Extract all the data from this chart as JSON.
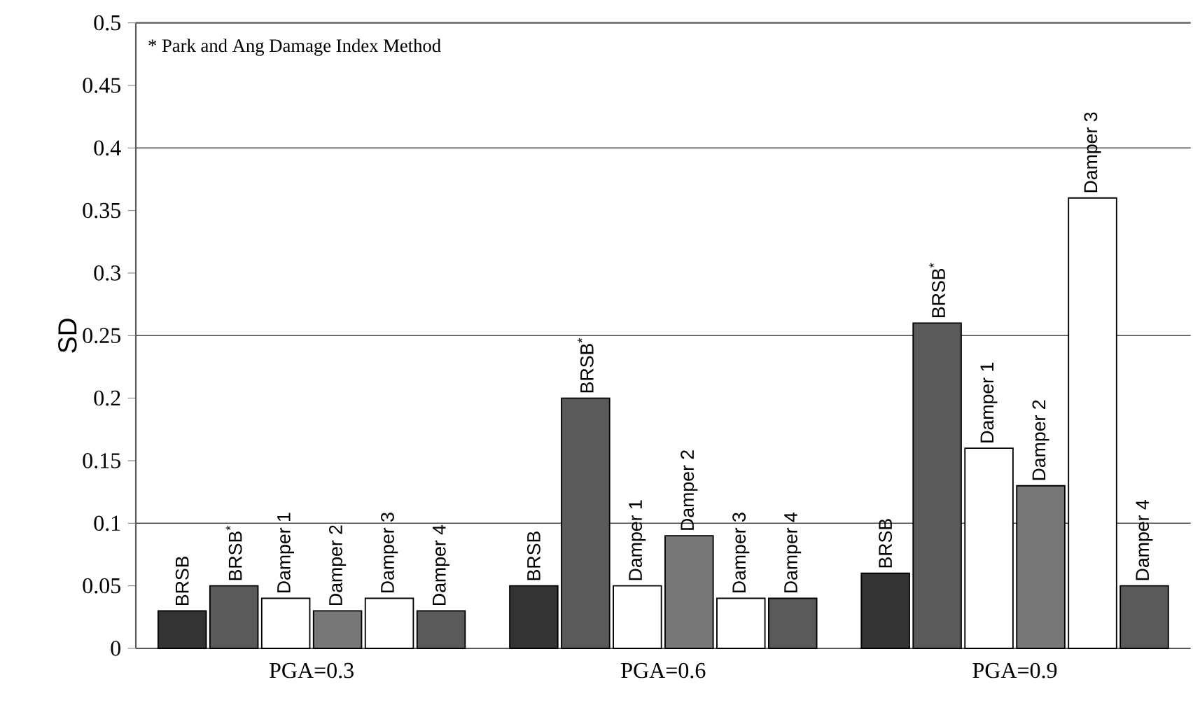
{
  "chart_data": {
    "type": "bar",
    "ylabel": "SD",
    "categories": [
      "PGA=0.3",
      "PGA=0.6",
      "PGA=0.9"
    ],
    "series": [
      {
        "name": "BRSB",
        "color": "#333333",
        "values": [
          0.03,
          0.05,
          0.06
        ]
      },
      {
        "name": "BRSB$^{*}$",
        "color": "#5a5a5a",
        "values": [
          0.05,
          0.2,
          0.26
        ]
      },
      {
        "name": "Damper 1",
        "color": "#ffffff",
        "values": [
          0.04,
          0.05,
          0.16
        ]
      },
      {
        "name": "Damper 2",
        "color": "#777777",
        "values": [
          0.03,
          0.09,
          0.13
        ]
      },
      {
        "name": "Damper 3",
        "color": "#ffffff",
        "values": [
          0.04,
          0.04,
          0.36
        ]
      },
      {
        "name": "Damper 4",
        "color": "#5a5a5a",
        "values": [
          0.03,
          0.04,
          0.05
        ]
      }
    ],
    "ylim": [
      0,
      0.5
    ],
    "yticks": [
      0,
      0.05,
      0.1,
      0.15,
      0.2,
      0.25,
      0.3,
      0.35,
      0.4,
      0.45,
      0.5
    ],
    "ref_lines": [
      {
        "axis": "y",
        "value": 0.1
      },
      {
        "axis": "y",
        "value": 0.25
      },
      {
        "axis": "y",
        "value": 0.4
      }
    ],
    "annotations": [
      "* Park and Ang Damage Index Method"
    ],
    "grid": false
  }
}
